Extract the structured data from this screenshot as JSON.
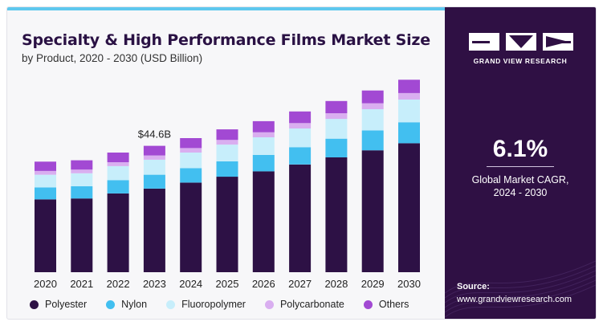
{
  "header": {
    "title": "Specialty & High Performance Films Market Size",
    "subtitle": "by Product, 2020 - 2030 (USD Billion)"
  },
  "brand": {
    "name": "GRAND VIEW RESEARCH",
    "logo": "gvr-logo"
  },
  "highlight": {
    "cagr": "6.1%",
    "caption_line1": "Global Market CAGR,",
    "caption_line2": "2024 - 2030"
  },
  "source": {
    "label": "Source:",
    "url": "www.grandviewresearch.com"
  },
  "colors": {
    "Polyester": "#2d1145",
    "Nylon": "#42bff0",
    "Fluoropolymer": "#c7eefb",
    "Polycarbonate": "#d9aef0",
    "Others": "#a249d3",
    "panel": "#2f1044",
    "accent": "#5ec8ee"
  },
  "chart_data": {
    "type": "bar",
    "stacked": true,
    "categories": [
      "2020",
      "2021",
      "2022",
      "2023",
      "2024",
      "2025",
      "2026",
      "2027",
      "2028",
      "2029",
      "2030"
    ],
    "series": [
      {
        "name": "Polyester",
        "values": [
          25.7,
          26.0,
          27.8,
          29.5,
          31.6,
          33.7,
          35.6,
          38.0,
          40.5,
          43.0,
          45.5
        ]
      },
      {
        "name": "Nylon",
        "values": [
          4.2,
          4.3,
          4.7,
          4.9,
          5.1,
          5.4,
          5.8,
          6.1,
          6.6,
          7.0,
          7.4
        ]
      },
      {
        "name": "Fluoropolymer",
        "values": [
          4.5,
          4.6,
          4.9,
          5.3,
          5.5,
          5.9,
          6.2,
          6.6,
          7.0,
          7.5,
          8.0
        ]
      },
      {
        "name": "Polycarbonate",
        "values": [
          1.3,
          1.3,
          1.4,
          1.5,
          1.6,
          1.7,
          1.8,
          1.9,
          2.0,
          2.1,
          2.3
        ]
      },
      {
        "name": "Others",
        "values": [
          3.3,
          3.3,
          3.4,
          3.4,
          3.5,
          3.7,
          3.9,
          4.1,
          4.3,
          4.5,
          4.7
        ]
      }
    ],
    "annotations": [
      {
        "category": "2023",
        "label": "$44.6B"
      }
    ],
    "axes": {
      "y_axis_visible": false,
      "grid": false
    },
    "legend": "bottom"
  }
}
